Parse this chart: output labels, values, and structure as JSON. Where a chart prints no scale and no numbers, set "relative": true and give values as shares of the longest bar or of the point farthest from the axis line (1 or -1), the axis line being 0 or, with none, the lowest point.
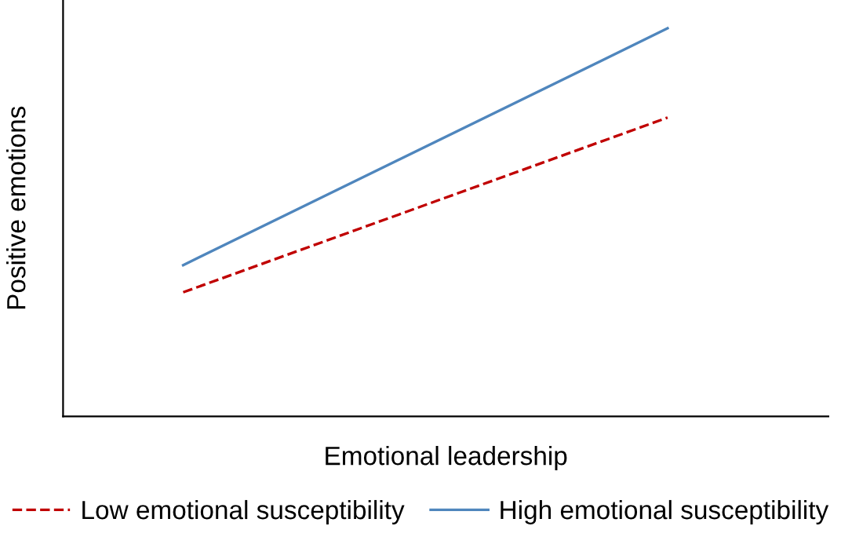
{
  "chart_data": {
    "type": "line",
    "relative": true,
    "xlabel": "Emotional leadership",
    "ylabel": "Positive emotions",
    "categories": [
      null,
      null
    ],
    "legend": "bottom",
    "grid": false,
    "series": [
      {
        "name": "Low emotional susceptibility",
        "color": "#c00000",
        "line_style": "dashed",
        "values": [
          0.32,
          0.77
        ]
      },
      {
        "name": "High emotional susceptibility",
        "color": "#4f86bd",
        "line_style": "solid",
        "values": [
          0.39,
          1.0
        ]
      }
    ]
  }
}
